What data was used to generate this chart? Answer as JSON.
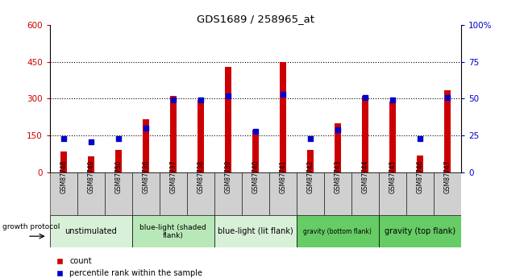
{
  "title": "GDS1689 / 258965_at",
  "samples": [
    "GSM87748",
    "GSM87749",
    "GSM87750",
    "GSM87736",
    "GSM87737",
    "GSM87738",
    "GSM87739",
    "GSM87740",
    "GSM87741",
    "GSM87742",
    "GSM87743",
    "GSM87744",
    "GSM87745",
    "GSM87746",
    "GSM87747"
  ],
  "count_values": [
    85,
    65,
    90,
    215,
    310,
    295,
    430,
    175,
    450,
    90,
    200,
    310,
    290,
    70,
    335
  ],
  "percentile_values": [
    23,
    21,
    23,
    30,
    49,
    49,
    52,
    28,
    53,
    23,
    29,
    51,
    49,
    23,
    51
  ],
  "groups": [
    {
      "label": "unstimulated",
      "start": 0,
      "end": 3,
      "color": "#d8f0d8"
    },
    {
      "label": "blue-light (shaded\nflank)",
      "start": 3,
      "end": 6,
      "color": "#b8e8b8"
    },
    {
      "label": "blue-light (lit flank)",
      "start": 6,
      "end": 9,
      "color": "#d8f0d8"
    },
    {
      "label": "gravity (bottom flank)",
      "start": 9,
      "end": 12,
      "color": "#66cc66"
    },
    {
      "label": "gravity (top flank)",
      "start": 12,
      "end": 15,
      "color": "#66cc66"
    }
  ],
  "ylim_left": [
    0,
    600
  ],
  "ylim_right": [
    0,
    100
  ],
  "yticks_left": [
    0,
    150,
    300,
    450,
    600
  ],
  "yticks_right": [
    0,
    25,
    50,
    75,
    100
  ],
  "bar_color": "#cc0000",
  "dot_color": "#0000cc",
  "left_axis_color": "#cc0000",
  "right_axis_color": "#0000cc",
  "sample_bg": "#d0d0d0"
}
